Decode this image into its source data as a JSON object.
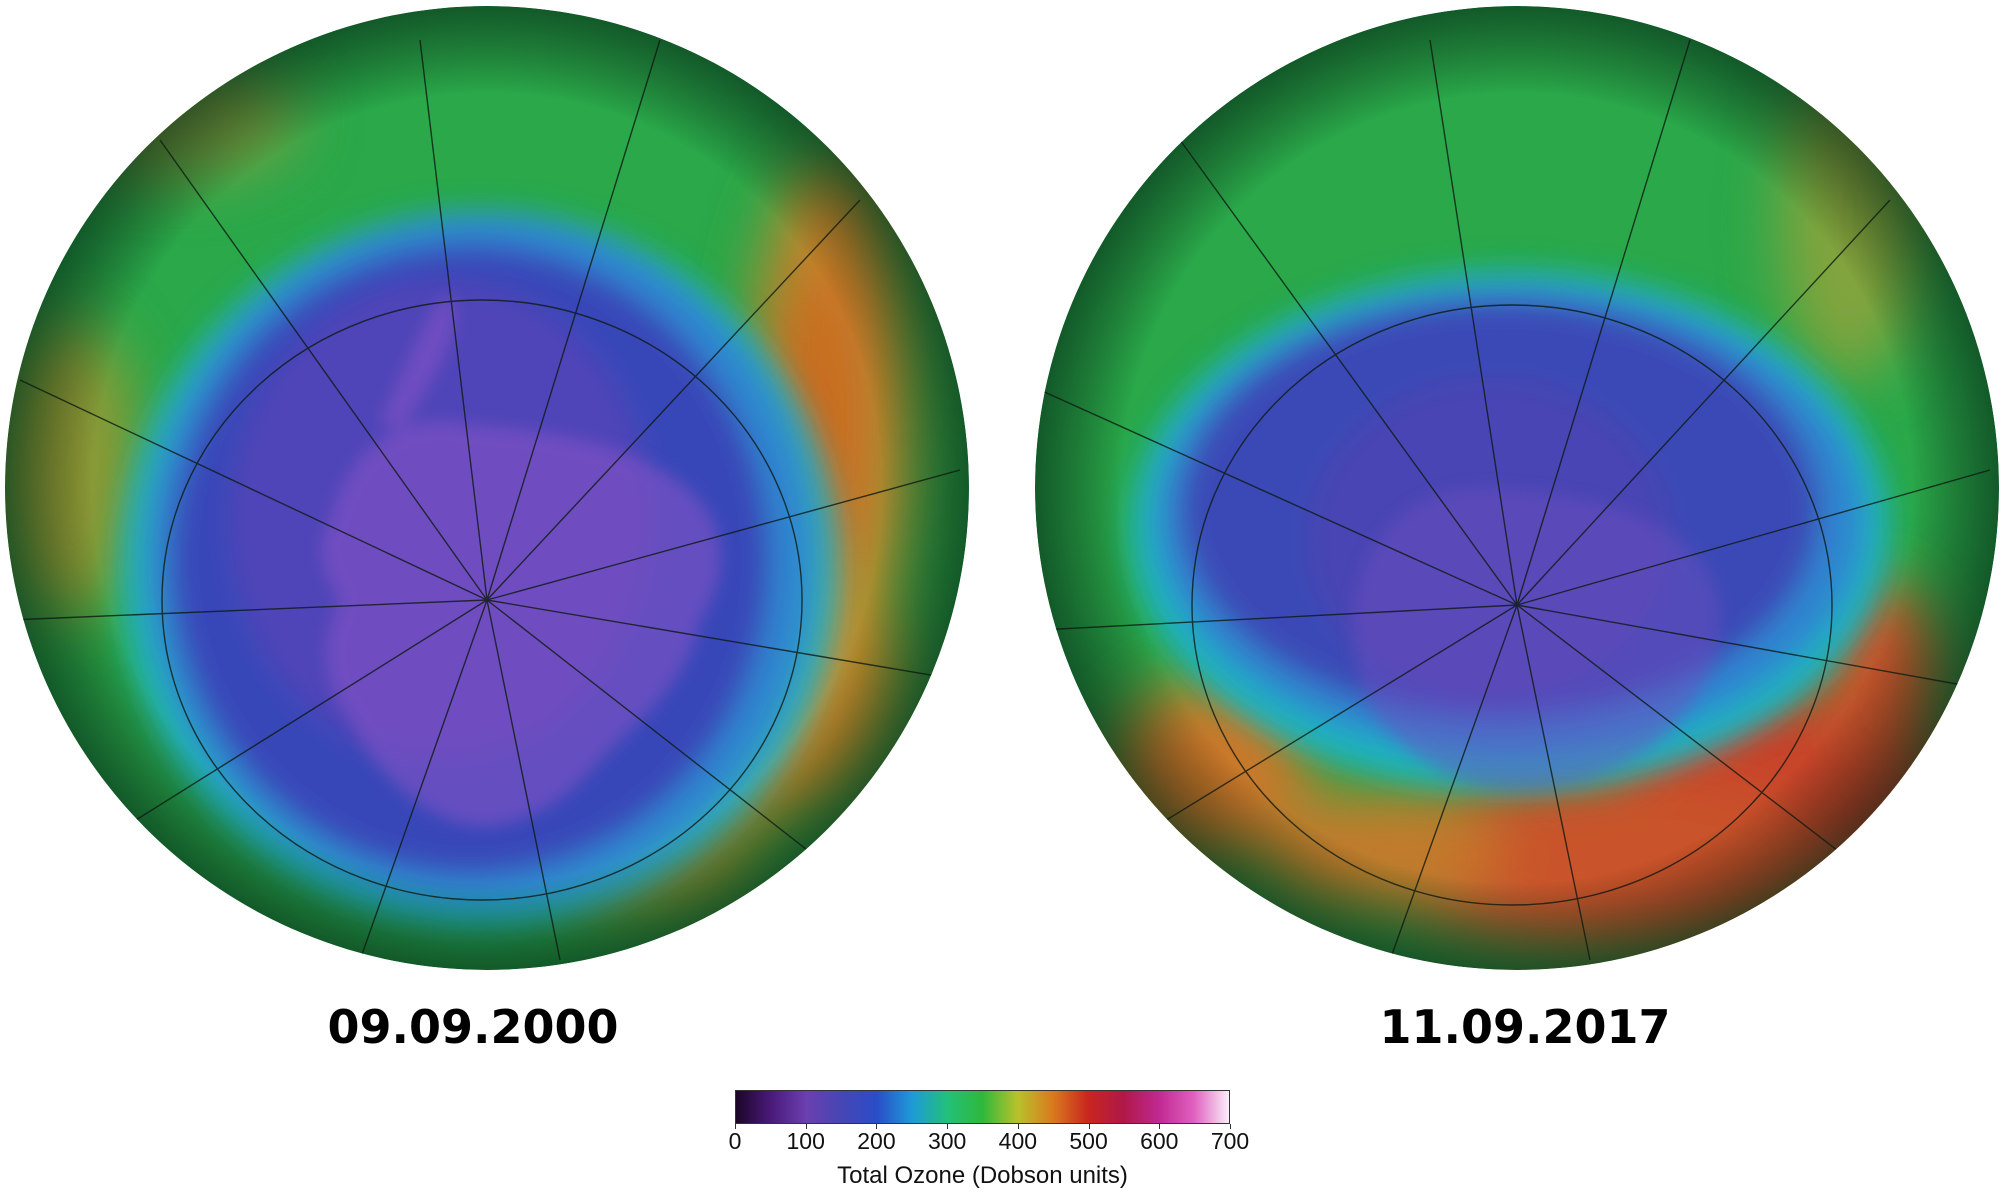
{
  "maps": [
    {
      "date": "09.09.2000",
      "name": "ozone-map-2000"
    },
    {
      "date": "11.09.2017",
      "name": "ozone-map-2017"
    }
  ],
  "colorbar": {
    "title": "Total Ozone (Dobson units)",
    "ticks": [
      "0",
      "100",
      "200",
      "300",
      "400",
      "500",
      "600",
      "700"
    ],
    "min": 0,
    "max": 700,
    "stops": [
      {
        "value": 0,
        "color": "#1a0628"
      },
      {
        "value": 50,
        "color": "#4a1a7a"
      },
      {
        "value": 100,
        "color": "#6b3fb0"
      },
      {
        "value": 150,
        "color": "#4646b4"
      },
      {
        "value": 200,
        "color": "#2a4dc8"
      },
      {
        "value": 250,
        "color": "#1e9ad8"
      },
      {
        "value": 300,
        "color": "#22c07a"
      },
      {
        "value": 350,
        "color": "#2fb83c"
      },
      {
        "value": 400,
        "color": "#b8c22a"
      },
      {
        "value": 450,
        "color": "#d97a1e"
      },
      {
        "value": 500,
        "color": "#c8261e"
      },
      {
        "value": 550,
        "color": "#b01848"
      },
      {
        "value": 600,
        "color": "#c02890"
      },
      {
        "value": 650,
        "color": "#e060c0"
      },
      {
        "value": 700,
        "color": "#fbeefa"
      }
    ]
  }
}
